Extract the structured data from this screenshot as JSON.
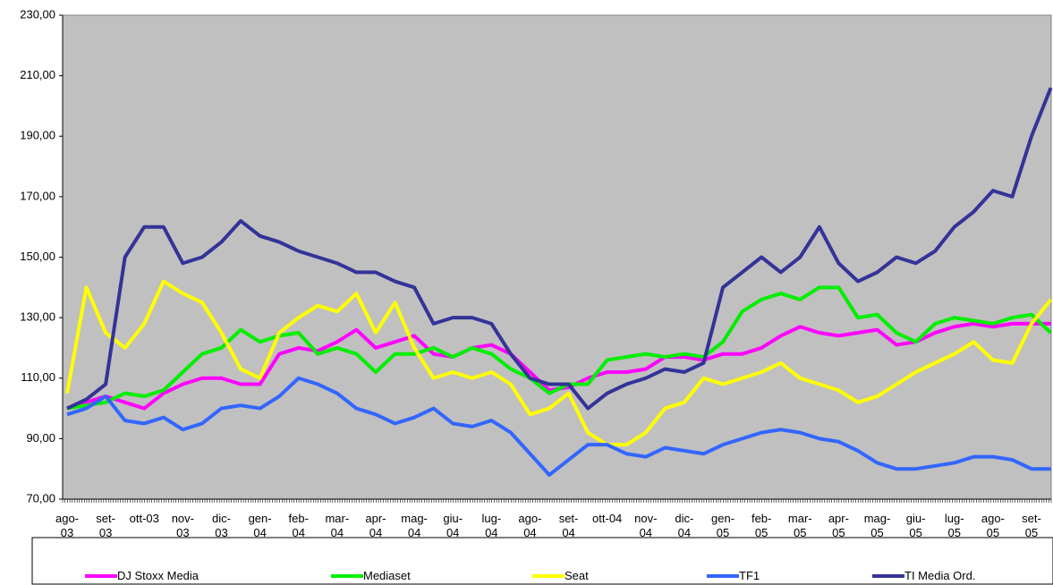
{
  "chart_data": {
    "type": "line",
    "categories": [
      "ago-03",
      null,
      "set-03",
      null,
      "ott-03",
      null,
      "nov-03",
      null,
      "dic-03",
      null,
      "gen-04",
      null,
      "feb-04",
      null,
      "mar-04",
      null,
      "apr-04",
      null,
      "mag-04",
      null,
      "giu-04",
      null,
      "lug-04",
      null,
      "ago-04",
      null,
      "set-04",
      null,
      "ott-04",
      null,
      "nov-04",
      null,
      "dic-04",
      null,
      "gen-05",
      null,
      "feb-05",
      null,
      "mar-05",
      null,
      "apr-05",
      null,
      "mag-05",
      null,
      "giu-05",
      null,
      "lug-05",
      null,
      "ago-05",
      null,
      "set-05",
      null
    ],
    "series": [
      {
        "name": "DJ Stoxx Media",
        "color": "#ff00ff",
        "values": [
          100,
          102,
          104,
          102,
          100,
          105,
          108,
          110,
          110,
          108,
          108,
          118,
          120,
          119,
          122,
          126,
          120,
          122,
          124,
          118,
          117,
          120,
          121,
          118,
          112,
          106,
          107,
          110,
          112,
          112,
          113,
          117,
          117,
          116,
          118,
          118,
          120,
          124,
          127,
          125,
          124,
          125,
          126,
          121,
          122,
          125,
          127,
          128,
          127,
          128,
          128,
          128
        ]
      },
      {
        "name": "Mediaset",
        "color": "#00ee00",
        "values": [
          100,
          101,
          102,
          105,
          104,
          106,
          112,
          118,
          120,
          126,
          122,
          124,
          125,
          118,
          120,
          118,
          112,
          118,
          118,
          120,
          117,
          120,
          118,
          113,
          110,
          105,
          108,
          108,
          116,
          117,
          118,
          117,
          118,
          117,
          122,
          132,
          136,
          138,
          136,
          140,
          140,
          130,
          131,
          125,
          122,
          128,
          130,
          129,
          128,
          130,
          131,
          125
        ]
      },
      {
        "name": "Seat",
        "color": "#ffff00",
        "values": [
          105,
          140,
          125,
          120,
          128,
          142,
          138,
          135,
          125,
          113,
          110,
          125,
          130,
          134,
          132,
          138,
          125,
          135,
          120,
          110,
          112,
          110,
          112,
          108,
          98,
          100,
          105,
          92,
          88,
          88,
          92,
          100,
          102,
          110,
          108,
          110,
          112,
          115,
          110,
          108,
          106,
          102,
          104,
          108,
          112,
          115,
          118,
          122,
          116,
          115,
          128,
          136
        ]
      },
      {
        "name": "TF1",
        "color": "#3366ff",
        "values": [
          98,
          100,
          104,
          96,
          95,
          97,
          93,
          95,
          100,
          101,
          100,
          104,
          110,
          108,
          105,
          100,
          98,
          95,
          97,
          100,
          95,
          94,
          96,
          92,
          85,
          78,
          83,
          88,
          88,
          85,
          84,
          87,
          86,
          85,
          88,
          90,
          92,
          93,
          92,
          90,
          89,
          86,
          82,
          80,
          80,
          81,
          82,
          84,
          84,
          83,
          80,
          80
        ]
      },
      {
        "name": "TI Media Ord.",
        "color": "#333399",
        "values": [
          100,
          103,
          108,
          150,
          160,
          160,
          148,
          150,
          155,
          162,
          157,
          155,
          152,
          150,
          148,
          145,
          145,
          142,
          140,
          128,
          130,
          130,
          128,
          118,
          110,
          108,
          108,
          100,
          105,
          108,
          110,
          113,
          112,
          115,
          140,
          145,
          150,
          145,
          150,
          160,
          148,
          142,
          145,
          150,
          148,
          152,
          160,
          165,
          172,
          170,
          190,
          206
        ]
      }
    ],
    "ylim": [
      70,
      230
    ],
    "yticks": [
      {
        "value": 70,
        "label": "70,00"
      },
      {
        "value": 90,
        "label": "90,00"
      },
      {
        "value": 110,
        "label": "110,00"
      },
      {
        "value": 130,
        "label": "130,00"
      },
      {
        "value": 150,
        "label": "150,00"
      },
      {
        "value": 170,
        "label": "170,00"
      },
      {
        "value": 190,
        "label": "190,00"
      },
      {
        "value": 210,
        "label": "210,00"
      },
      {
        "value": 230,
        "label": "230,00"
      }
    ],
    "grid": false,
    "background": "#c0c0c0"
  }
}
